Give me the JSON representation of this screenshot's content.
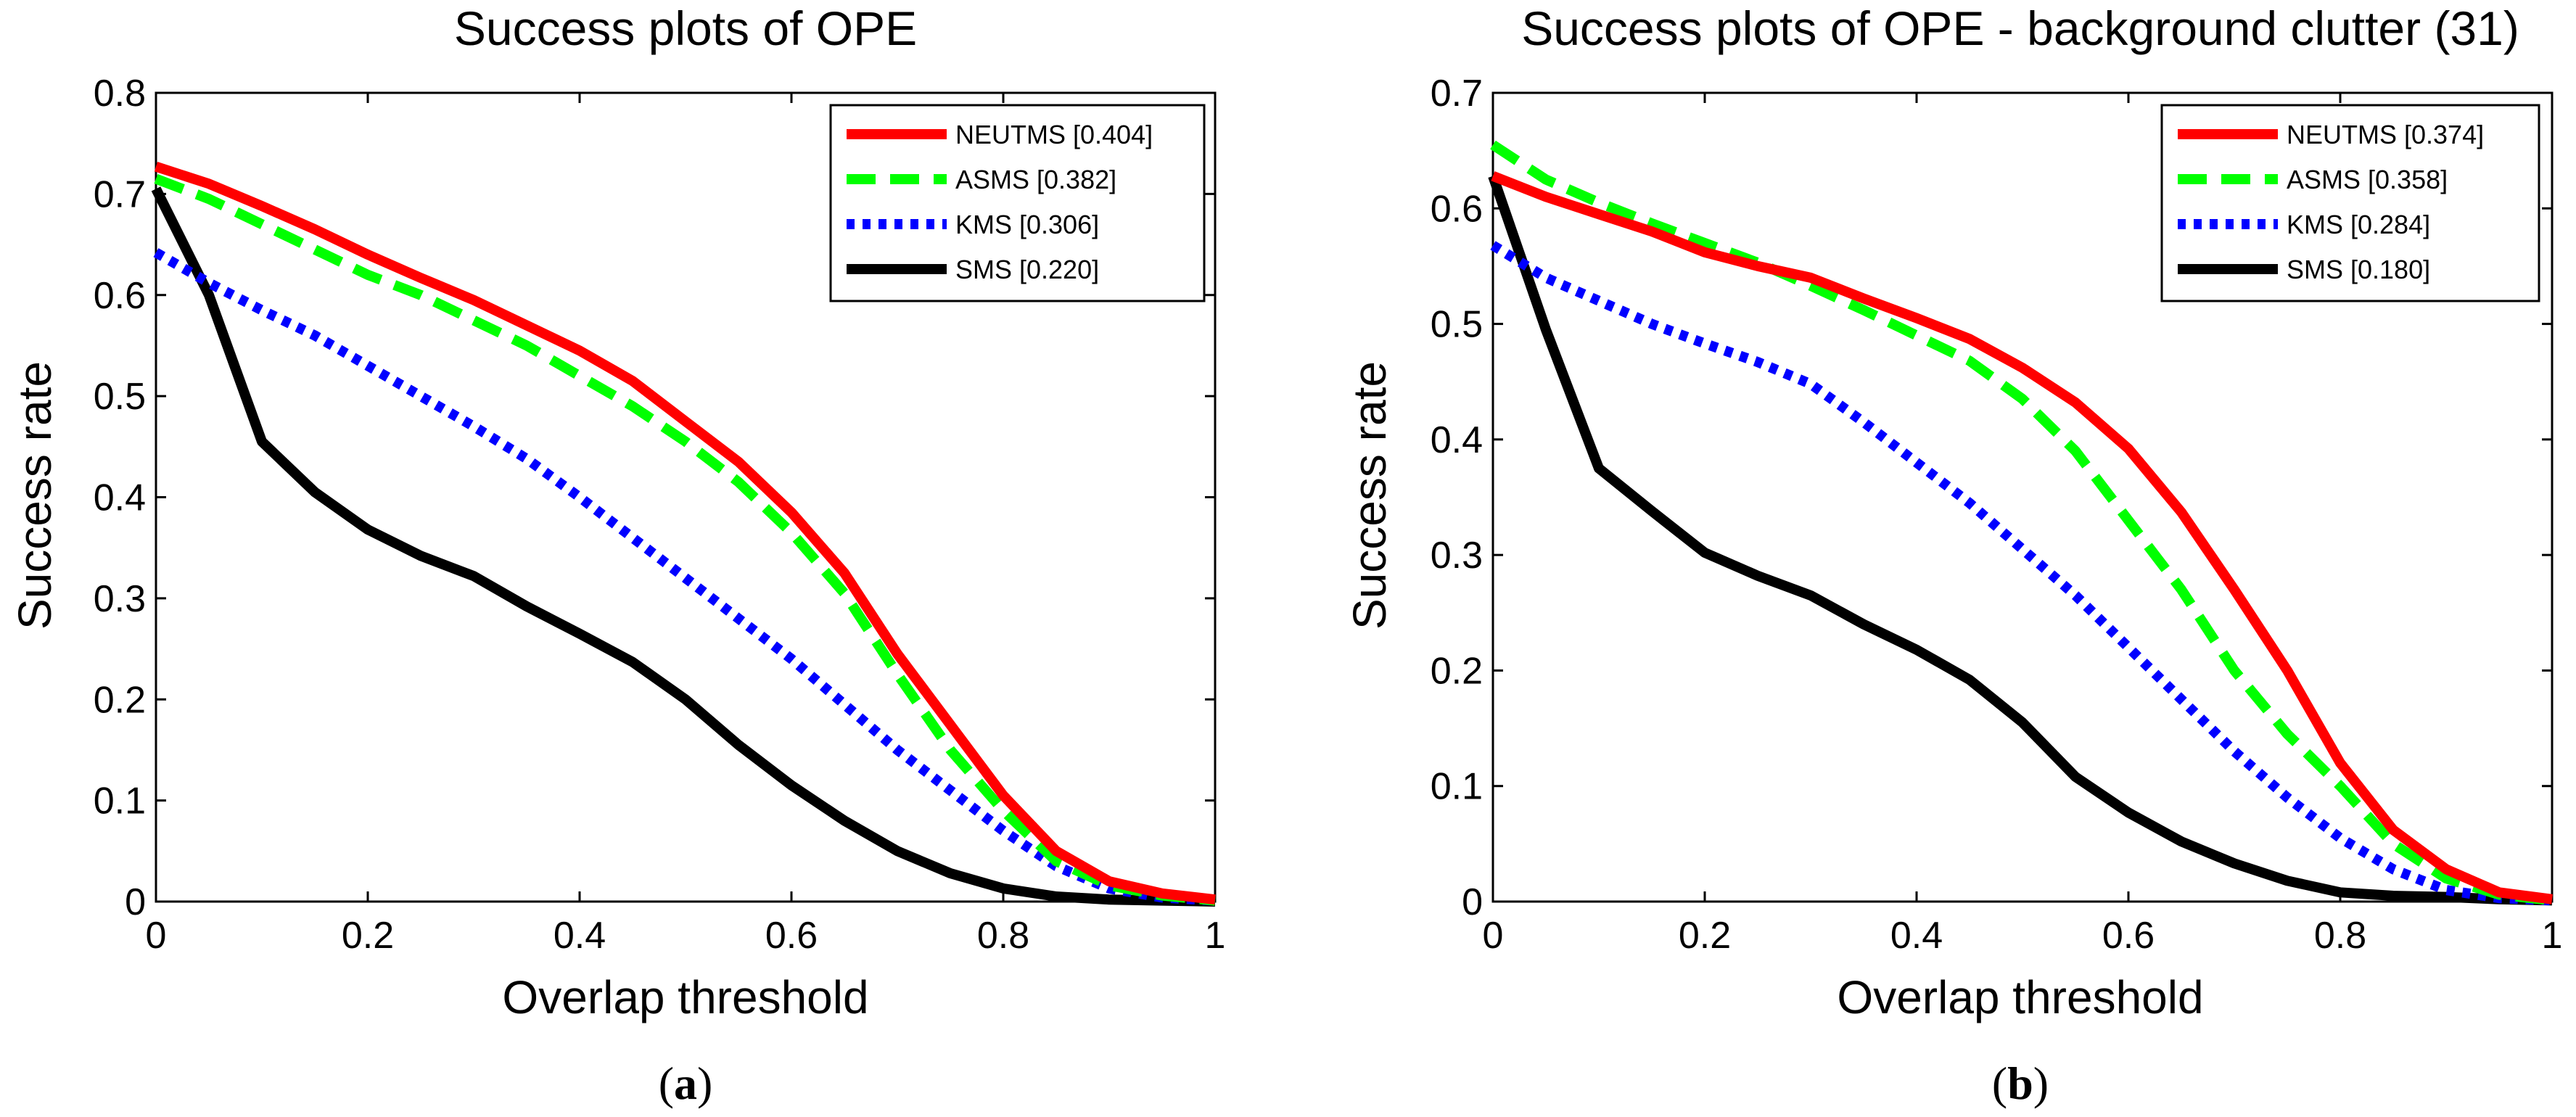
{
  "chart_data": [
    {
      "type": "line",
      "title": "Success plots of OPE",
      "xlabel": "Overlap threshold",
      "ylabel": "Success rate",
      "caption_letter": "a",
      "xlim": [
        0,
        1
      ],
      "ylim": [
        0,
        0.8
      ],
      "xticks": [
        0,
        0.2,
        0.4,
        0.6,
        0.8,
        1
      ],
      "xtick_labels": [
        "0",
        "0.2",
        "0.4",
        "0.6",
        "0.8",
        "1"
      ],
      "yticks": [
        0,
        0.1,
        0.2,
        0.3,
        0.4,
        0.5,
        0.6,
        0.7,
        0.8
      ],
      "ytick_labels": [
        "0",
        "0.1",
        "0.2",
        "0.3",
        "0.4",
        "0.5",
        "0.6",
        "0.7",
        "0.8"
      ],
      "grid": false,
      "legend_position": "top-right",
      "x": [
        0,
        0.05,
        0.1,
        0.15,
        0.2,
        0.25,
        0.3,
        0.35,
        0.4,
        0.45,
        0.5,
        0.55,
        0.6,
        0.65,
        0.7,
        0.75,
        0.8,
        0.85,
        0.9,
        0.95,
        1
      ],
      "series": [
        {
          "name": "NEUTMS",
          "score": "[0.404]",
          "legend": "NEUTMS [0.404]",
          "color": "#ff0000",
          "dash": "solid",
          "values": [
            0.727,
            0.71,
            0.688,
            0.665,
            0.64,
            0.617,
            0.595,
            0.57,
            0.545,
            0.515,
            0.475,
            0.435,
            0.385,
            0.325,
            0.245,
            0.175,
            0.105,
            0.05,
            0.02,
            0.008,
            0.002
          ]
        },
        {
          "name": "ASMS",
          "score": "[0.382]",
          "legend": "ASMS [0.382]",
          "color": "#00ff00",
          "dash": "dashed",
          "values": [
            0.715,
            0.695,
            0.67,
            0.645,
            0.62,
            0.6,
            0.575,
            0.55,
            0.52,
            0.49,
            0.455,
            0.415,
            0.365,
            0.305,
            0.225,
            0.15,
            0.09,
            0.04,
            0.016,
            0.006,
            0.001
          ]
        },
        {
          "name": "KMS",
          "score": "[0.306]",
          "legend": "KMS [0.306]",
          "color": "#0000ff",
          "dash": "dotted",
          "values": [
            0.642,
            0.612,
            0.585,
            0.56,
            0.53,
            0.5,
            0.47,
            0.438,
            0.4,
            0.36,
            0.32,
            0.28,
            0.24,
            0.195,
            0.15,
            0.11,
            0.07,
            0.035,
            0.013,
            0.004,
            0.001
          ]
        },
        {
          "name": "SMS",
          "score": "[0.220]",
          "legend": "SMS [0.220]",
          "color": "#000000",
          "dash": "solid",
          "values": [
            0.705,
            0.6,
            0.455,
            0.405,
            0.368,
            0.342,
            0.322,
            0.292,
            0.265,
            0.237,
            0.2,
            0.155,
            0.115,
            0.08,
            0.05,
            0.028,
            0.013,
            0.005,
            0.002,
            0.001,
            0
          ]
        }
      ]
    },
    {
      "type": "line",
      "title": "Success plots of OPE - background clutter (31)",
      "xlabel": "Overlap threshold",
      "ylabel": "Success rate",
      "caption_letter": "b",
      "xlim": [
        0,
        1
      ],
      "ylim": [
        0,
        0.7
      ],
      "xticks": [
        0,
        0.2,
        0.4,
        0.6,
        0.8,
        1
      ],
      "xtick_labels": [
        "0",
        "0.2",
        "0.4",
        "0.6",
        "0.8",
        "1"
      ],
      "yticks": [
        0,
        0.1,
        0.2,
        0.3,
        0.4,
        0.5,
        0.6,
        0.7
      ],
      "ytick_labels": [
        "0",
        "0.1",
        "0.2",
        "0.3",
        "0.4",
        "0.5",
        "0.6",
        "0.7"
      ],
      "grid": false,
      "legend_position": "top-right",
      "x": [
        0,
        0.05,
        0.1,
        0.15,
        0.2,
        0.25,
        0.3,
        0.35,
        0.4,
        0.45,
        0.5,
        0.55,
        0.6,
        0.65,
        0.7,
        0.75,
        0.8,
        0.85,
        0.9,
        0.95,
        1
      ],
      "series": [
        {
          "name": "NEUTMS",
          "score": "[0.374]",
          "legend": "NEUTMS [0.374]",
          "color": "#ff0000",
          "dash": "solid",
          "values": [
            0.628,
            0.61,
            0.595,
            0.58,
            0.562,
            0.55,
            0.54,
            0.522,
            0.505,
            0.487,
            0.462,
            0.432,
            0.392,
            0.337,
            0.27,
            0.2,
            0.12,
            0.062,
            0.028,
            0.008,
            0.002
          ]
        },
        {
          "name": "ASMS",
          "score": "[0.358]",
          "legend": "ASMS [0.358]",
          "color": "#00ff00",
          "dash": "dashed",
          "values": [
            0.655,
            0.625,
            0.605,
            0.587,
            0.57,
            0.553,
            0.533,
            0.512,
            0.49,
            0.468,
            0.435,
            0.39,
            0.33,
            0.27,
            0.2,
            0.145,
            0.1,
            0.05,
            0.02,
            0.006,
            0.001
          ]
        },
        {
          "name": "KMS",
          "score": "[0.284]",
          "legend": "KMS [0.284]",
          "color": "#0000ff",
          "dash": "dotted",
          "values": [
            0.568,
            0.54,
            0.52,
            0.5,
            0.483,
            0.467,
            0.448,
            0.415,
            0.38,
            0.345,
            0.305,
            0.265,
            0.22,
            0.175,
            0.13,
            0.09,
            0.055,
            0.028,
            0.01,
            0.003,
            0.001
          ]
        },
        {
          "name": "SMS",
          "score": "[0.180]",
          "legend": "SMS [0.180]",
          "color": "#000000",
          "dash": "solid",
          "values": [
            0.628,
            0.495,
            0.375,
            0.338,
            0.302,
            0.282,
            0.265,
            0.24,
            0.218,
            0.192,
            0.155,
            0.108,
            0.077,
            0.052,
            0.033,
            0.018,
            0.008,
            0.005,
            0.004,
            0.002,
            0.001
          ]
        }
      ]
    }
  ]
}
